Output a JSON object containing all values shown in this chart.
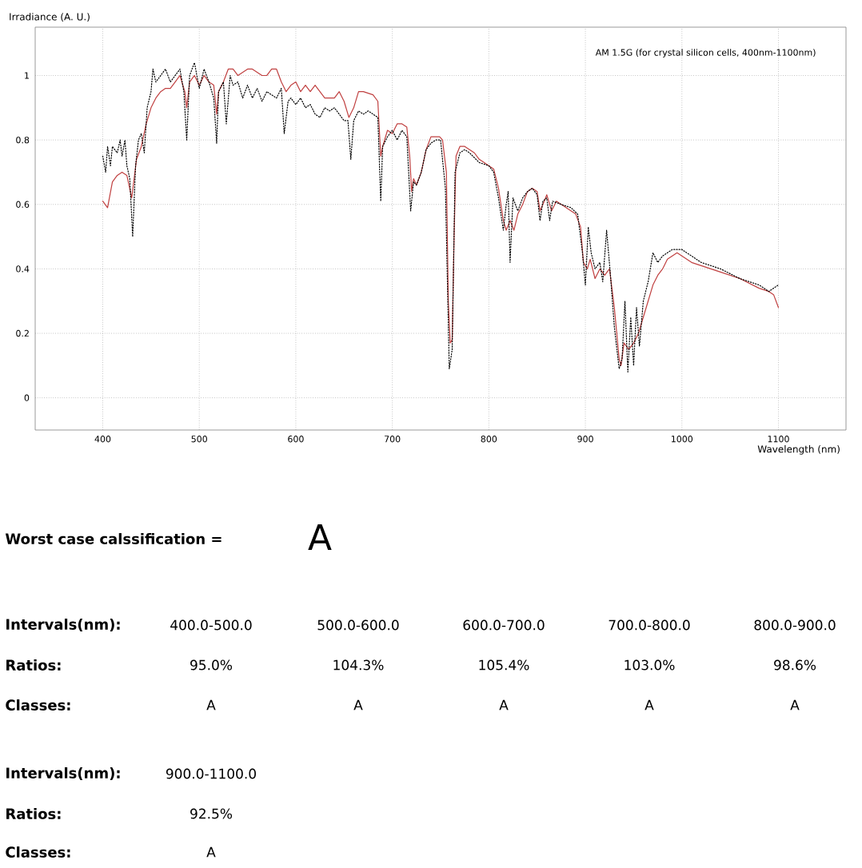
{
  "chart_data": [
    {
      "type": "line",
      "xlabel": "Wavelength (nm)",
      "ylabel": "Irradiance (A. U.)",
      "annotations": [
        "AM 1.5G (for crystal silicon cells, 400nm-1100nm)"
      ],
      "xlim": [
        330,
        1170
      ],
      "ylim": [
        -0.1,
        1.15
      ],
      "xticks": [
        400,
        500,
        600,
        700,
        800,
        900,
        1000,
        1100
      ],
      "yticks": [
        0,
        0.2,
        0.4,
        0.6,
        0.8,
        1
      ],
      "grid": true,
      "marker": "none",
      "series": [
        {
          "color": "#c04040",
          "line_style": "solid",
          "x": [
            400,
            405,
            410,
            415,
            420,
            425,
            430,
            435,
            440,
            445,
            450,
            455,
            460,
            465,
            470,
            475,
            480,
            485,
            487,
            490,
            495,
            500,
            505,
            510,
            515,
            518,
            520,
            525,
            530,
            535,
            540,
            545,
            550,
            555,
            560,
            565,
            570,
            575,
            580,
            585,
            590,
            595,
            600,
            605,
            610,
            615,
            620,
            625,
            630,
            640,
            645,
            650,
            655,
            660,
            665,
            670,
            680,
            685,
            688,
            690,
            695,
            700,
            705,
            710,
            715,
            718,
            720,
            722,
            725,
            730,
            735,
            740,
            749,
            752,
            756,
            758,
            760,
            762,
            764,
            766,
            770,
            775,
            780,
            785,
            790,
            795,
            800,
            805,
            810,
            815,
            818,
            822,
            826,
            830,
            835,
            840,
            845,
            850,
            853,
            856,
            860,
            865,
            870,
            880,
            890,
            895,
            898,
            902,
            905,
            910,
            915,
            920,
            925,
            930,
            935,
            937,
            940,
            945,
            950,
            955,
            960,
            965,
            970,
            975,
            980,
            985,
            990,
            995,
            1000,
            1005,
            1010,
            1020,
            1040,
            1060,
            1080,
            1090,
            1095,
            1100
          ],
          "values": [
            0.61,
            0.59,
            0.67,
            0.69,
            0.7,
            0.69,
            0.62,
            0.74,
            0.78,
            0.85,
            0.9,
            0.93,
            0.95,
            0.96,
            0.96,
            0.98,
            1.0,
            0.95,
            0.9,
            0.98,
            1.0,
            0.97,
            1.0,
            0.98,
            0.97,
            0.88,
            0.95,
            0.98,
            1.02,
            1.02,
            1.0,
            1.01,
            1.02,
            1.02,
            1.01,
            1.0,
            1.0,
            1.02,
            1.02,
            0.98,
            0.95,
            0.97,
            0.98,
            0.95,
            0.97,
            0.95,
            0.97,
            0.95,
            0.93,
            0.93,
            0.95,
            0.92,
            0.87,
            0.9,
            0.95,
            0.95,
            0.94,
            0.92,
            0.75,
            0.78,
            0.83,
            0.82,
            0.85,
            0.85,
            0.84,
            0.75,
            0.64,
            0.68,
            0.66,
            0.7,
            0.77,
            0.81,
            0.81,
            0.8,
            0.7,
            0.3,
            0.17,
            0.18,
            0.5,
            0.75,
            0.78,
            0.78,
            0.77,
            0.76,
            0.74,
            0.73,
            0.72,
            0.71,
            0.65,
            0.55,
            0.52,
            0.55,
            0.52,
            0.57,
            0.6,
            0.64,
            0.65,
            0.64,
            0.58,
            0.6,
            0.63,
            0.58,
            0.61,
            0.59,
            0.57,
            0.53,
            0.42,
            0.4,
            0.43,
            0.37,
            0.4,
            0.38,
            0.4,
            0.28,
            0.12,
            0.1,
            0.17,
            0.15,
            0.17,
            0.2,
            0.25,
            0.3,
            0.35,
            0.38,
            0.4,
            0.43,
            0.44,
            0.45,
            0.44,
            0.43,
            0.42,
            0.41,
            0.39,
            0.37,
            0.34,
            0.33,
            0.32,
            0.28
          ]
        },
        {
          "color": "#000000",
          "line_style": "dotted",
          "x": [
            400,
            403,
            405,
            408,
            410,
            415,
            418,
            420,
            423,
            425,
            428,
            431,
            434,
            437,
            440,
            443,
            446,
            450,
            452,
            455,
            460,
            465,
            470,
            475,
            480,
            484,
            487,
            490,
            495,
            500,
            505,
            510,
            515,
            518,
            520,
            525,
            528,
            532,
            535,
            540,
            545,
            550,
            555,
            560,
            565,
            570,
            575,
            580,
            585,
            588,
            592,
            595,
            600,
            605,
            610,
            615,
            620,
            625,
            630,
            635,
            640,
            645,
            650,
            654,
            657,
            660,
            665,
            670,
            675,
            680,
            685,
            688,
            690,
            695,
            700,
            705,
            710,
            715,
            719,
            722,
            725,
            730,
            735,
            740,
            745,
            750,
            755,
            759,
            762,
            765,
            770,
            775,
            780,
            790,
            800,
            805,
            810,
            815,
            818,
            820,
            822,
            825,
            830,
            835,
            840,
            845,
            850,
            853,
            856,
            860,
            863,
            866,
            875,
            885,
            892,
            897,
            900,
            903,
            906,
            910,
            915,
            918,
            922,
            926,
            930,
            935,
            938,
            941,
            944,
            947,
            950,
            953,
            956,
            960,
            965,
            970,
            975,
            980,
            990,
            1000,
            1010,
            1020,
            1040,
            1060,
            1080,
            1090,
            1100
          ],
          "values": [
            0.75,
            0.7,
            0.78,
            0.72,
            0.78,
            0.76,
            0.8,
            0.75,
            0.8,
            0.72,
            0.68,
            0.5,
            0.72,
            0.8,
            0.82,
            0.76,
            0.9,
            0.95,
            1.02,
            0.98,
            1.0,
            1.02,
            0.98,
            1.0,
            1.02,
            0.95,
            0.8,
            1.0,
            1.04,
            0.96,
            1.02,
            0.98,
            0.93,
            0.79,
            0.95,
            0.98,
            0.85,
            1.0,
            0.97,
            0.98,
            0.93,
            0.97,
            0.93,
            0.96,
            0.92,
            0.95,
            0.94,
            0.93,
            0.96,
            0.82,
            0.92,
            0.93,
            0.91,
            0.93,
            0.9,
            0.91,
            0.88,
            0.87,
            0.9,
            0.89,
            0.9,
            0.88,
            0.86,
            0.86,
            0.74,
            0.86,
            0.89,
            0.88,
            0.89,
            0.88,
            0.87,
            0.61,
            0.78,
            0.81,
            0.83,
            0.8,
            0.83,
            0.81,
            0.58,
            0.67,
            0.66,
            0.7,
            0.77,
            0.79,
            0.8,
            0.8,
            0.65,
            0.09,
            0.15,
            0.7,
            0.76,
            0.77,
            0.76,
            0.73,
            0.72,
            0.7,
            0.62,
            0.52,
            0.6,
            0.64,
            0.42,
            0.62,
            0.58,
            0.62,
            0.64,
            0.65,
            0.63,
            0.55,
            0.61,
            0.62,
            0.55,
            0.61,
            0.6,
            0.59,
            0.57,
            0.45,
            0.35,
            0.53,
            0.45,
            0.4,
            0.42,
            0.36,
            0.52,
            0.38,
            0.22,
            0.09,
            0.12,
            0.3,
            0.08,
            0.25,
            0.1,
            0.28,
            0.16,
            0.3,
            0.36,
            0.45,
            0.42,
            0.44,
            0.46,
            0.46,
            0.44,
            0.42,
            0.4,
            0.37,
            0.35,
            0.33,
            0.35
          ]
        }
      ]
    },
    {
      "type": "other",
      "annotations": [
        "Worst case calssification =",
        "A",
        "Intervals(nm):",
        "400.0-500.0",
        "500.0-600.0",
        "600.0-700.0",
        "700.0-800.0",
        "800.0-900.0",
        "Ratios:",
        "95.0%",
        "104.3%",
        "105.4%",
        "103.0%",
        "98.6%",
        "Classes:",
        "A",
        "A",
        "A",
        "A",
        "A",
        "Intervals(nm):",
        "900.0-1100.0",
        "Ratios:",
        "92.5%",
        "Classes:",
        "A"
      ]
    }
  ]
}
